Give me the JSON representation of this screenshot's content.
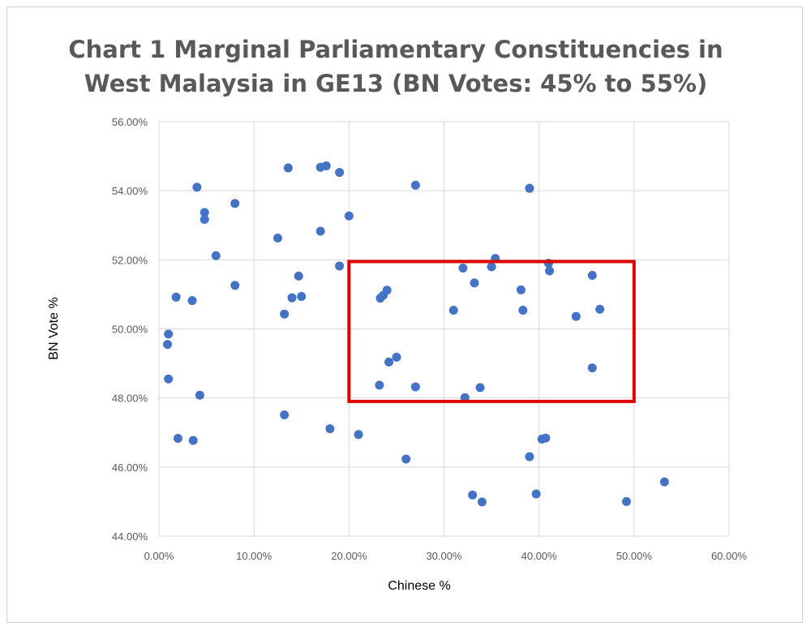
{
  "chart_data": {
    "type": "scatter",
    "title_lines": [
      "Chart 1 Marginal Parliamentary Constituencies in",
      "West Malaysia in GE13 (BN Votes: 45% to 55%)"
    ],
    "xlabel": "Chinese %",
    "ylabel": "BN Vote %",
    "xlim": [
      0,
      0.6
    ],
    "ylim": [
      0.44,
      0.56
    ],
    "x_ticks": [
      0,
      0.1,
      0.2,
      0.3,
      0.4,
      0.5,
      0.6
    ],
    "y_ticks": [
      0.44,
      0.46,
      0.48,
      0.5,
      0.52,
      0.54,
      0.56
    ],
    "x_tick_labels": [
      "0.00%",
      "10.00%",
      "20.00%",
      "30.00%",
      "40.00%",
      "50.00%",
      "60.00%"
    ],
    "y_tick_labels": [
      "44.00%",
      "46.00%",
      "48.00%",
      "50.00%",
      "52.00%",
      "54.00%",
      "56.00%"
    ],
    "grid": true,
    "point_color": "#4472c4",
    "highlight": {
      "x0": 0.2,
      "x1": 0.5,
      "y0": 0.479,
      "y1": 0.5195,
      "color": "#e00000"
    },
    "points": [
      [
        0.01,
        0.4985
      ],
      [
        0.009,
        0.4955
      ],
      [
        0.01,
        0.4855
      ],
      [
        0.018,
        0.5092
      ],
      [
        0.02,
        0.4683
      ],
      [
        0.035,
        0.5082
      ],
      [
        0.036,
        0.4677
      ],
      [
        0.04,
        0.541
      ],
      [
        0.043,
        0.4808
      ],
      [
        0.048,
        0.5337
      ],
      [
        0.048,
        0.5317
      ],
      [
        0.06,
        0.5212
      ],
      [
        0.08,
        0.5363
      ],
      [
        0.08,
        0.5126
      ],
      [
        0.125,
        0.5263
      ],
      [
        0.132,
        0.5043
      ],
      [
        0.132,
        0.4751
      ],
      [
        0.136,
        0.5466
      ],
      [
        0.14,
        0.509
      ],
      [
        0.147,
        0.5153
      ],
      [
        0.15,
        0.5094
      ],
      [
        0.17,
        0.5468
      ],
      [
        0.17,
        0.5283
      ],
      [
        0.176,
        0.5472
      ],
      [
        0.18,
        0.4711
      ],
      [
        0.19,
        0.5453
      ],
      [
        0.19,
        0.5182
      ],
      [
        0.2,
        0.5327
      ],
      [
        0.21,
        0.4694
      ],
      [
        0.232,
        0.4837
      ],
      [
        0.233,
        0.5089
      ],
      [
        0.236,
        0.5097
      ],
      [
        0.24,
        0.5112
      ],
      [
        0.242,
        0.4904
      ],
      [
        0.25,
        0.4918
      ],
      [
        0.26,
        0.4623
      ],
      [
        0.27,
        0.5416
      ],
      [
        0.27,
        0.4832
      ],
      [
        0.31,
        0.5054
      ],
      [
        0.32,
        0.5176
      ],
      [
        0.322,
        0.4801
      ],
      [
        0.33,
        0.4519
      ],
      [
        0.332,
        0.5133
      ],
      [
        0.338,
        0.483
      ],
      [
        0.34,
        0.4499
      ],
      [
        0.35,
        0.518
      ],
      [
        0.354,
        0.5204
      ],
      [
        0.381,
        0.5113
      ],
      [
        0.383,
        0.5054
      ],
      [
        0.39,
        0.5407
      ],
      [
        0.39,
        0.463
      ],
      [
        0.397,
        0.4522
      ],
      [
        0.403,
        0.4681
      ],
      [
        0.407,
        0.4684
      ],
      [
        0.41,
        0.519
      ],
      [
        0.411,
        0.5168
      ],
      [
        0.439,
        0.5036
      ],
      [
        0.456,
        0.5155
      ],
      [
        0.456,
        0.4887
      ],
      [
        0.464,
        0.5057
      ],
      [
        0.492,
        0.45
      ],
      [
        0.532,
        0.4557
      ]
    ]
  }
}
